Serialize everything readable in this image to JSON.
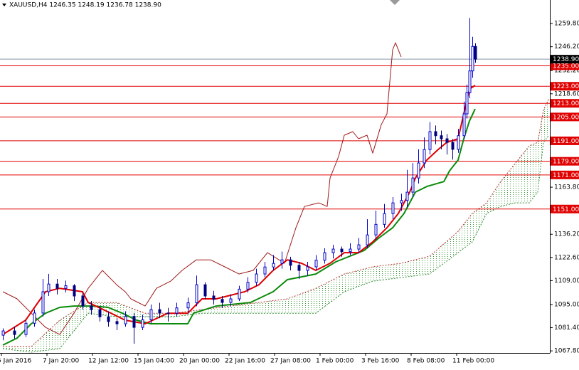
{
  "chart_data": {
    "type": "candlestick",
    "title": "XAUUSD,H4  1246.35 1248.19 1236.78 1238.90",
    "xlim": [
      -1,
      192.25
    ],
    "xticks": [
      {
        "value": -0.5,
        "label": "5 Jan 2016"
      },
      {
        "value": 15.5,
        "label": "7 Jan 20:00"
      },
      {
        "value": 31.5,
        "label": "12 Jan 12:00"
      },
      {
        "value": 47.5,
        "label": "15 Jan 04:00"
      },
      {
        "value": 63.5,
        "label": "20 Jan 00:00"
      },
      {
        "value": 79.5,
        "label": "22 Jan 16:00"
      },
      {
        "value": 95.5,
        "label": "27 Jan 08:00"
      },
      {
        "value": 111.5,
        "label": "1 Feb 00:00"
      },
      {
        "value": 127.5,
        "label": "3 Feb 16:00"
      },
      {
        "value": 143.5,
        "label": "8 Feb 08:00"
      },
      {
        "value": 159.5,
        "label": "11 Feb 00:00"
      }
    ],
    "ylim": [
      1066.6,
      1273.6
    ],
    "yticks": [
      {
        "value": 1259.8,
        "label": "1259.80"
      },
      {
        "value": 1246.2,
        "label": "1246.20"
      },
      {
        "value": 1232.2,
        "label": "1232.20"
      },
      {
        "value": 1218.6,
        "label": "1218.60"
      },
      {
        "value": 1163.8,
        "label": "1163.80"
      },
      {
        "value": 1136.2,
        "label": "1136.20"
      },
      {
        "value": 1122.6,
        "label": "1122.60"
      },
      {
        "value": 1109,
        "label": "1109.00"
      },
      {
        "value": 1095,
        "label": "1095.00"
      },
      {
        "value": 1081.4,
        "label": "1081.40"
      },
      {
        "value": 1067.8,
        "label": "1067.80"
      }
    ],
    "candles": {
      "bull_color": "#0000c8",
      "bear_color": "#000080",
      "x": [
        0,
        4,
        8,
        11,
        14,
        16,
        19,
        22,
        25,
        28,
        31,
        34,
        37,
        40,
        43,
        46,
        49,
        52,
        55,
        58,
        61,
        65,
        68,
        71,
        74,
        77,
        80,
        83,
        86,
        89,
        92,
        95,
        98,
        101,
        104,
        107,
        110,
        113,
        116,
        119,
        122,
        125,
        128,
        131,
        134,
        137,
        140,
        142,
        144,
        146,
        148,
        150,
        152,
        154,
        156,
        158,
        160,
        162,
        163,
        164,
        165,
        166
      ],
      "open": [
        1077,
        1079.5,
        1077.4,
        1084,
        1090,
        1102.5,
        1107,
        1104.5,
        1106,
        1100,
        1094.1,
        1092,
        1087.8,
        1085,
        1083.7,
        1088,
        1081.6,
        1086,
        1092,
        1090,
        1089.9,
        1093,
        1096,
        1106.6,
        1100,
        1098,
        1096.2,
        1098.3,
        1104,
        1108,
        1112.9,
        1117,
        1119.1,
        1121.2,
        1118,
        1115,
        1117.1,
        1121,
        1125.4,
        1127.5,
        1126,
        1127.5,
        1130,
        1135.8,
        1142,
        1148.3,
        1154.6,
        1156,
        1160.9,
        1169.2,
        1178,
        1185.9,
        1196.4,
        1194,
        1192.2,
        1190.1,
        1186,
        1194,
        1206.8,
        1219.3,
        1232,
        1246.35
      ],
      "high": [
        1081,
        1082,
        1086,
        1092,
        1110,
        1113,
        1110,
        1109,
        1107,
        1102,
        1097,
        1094,
        1091,
        1087,
        1091,
        1090,
        1089,
        1095,
        1096,
        1093,
        1096,
        1099,
        1112,
        1108,
        1103,
        1100,
        1101,
        1106,
        1111,
        1116,
        1120,
        1124,
        1126,
        1123,
        1120,
        1120,
        1124,
        1128,
        1130,
        1129,
        1131,
        1134,
        1145,
        1150,
        1154,
        1158,
        1160,
        1174,
        1178,
        1186,
        1193,
        1202,
        1200,
        1197,
        1195,
        1192,
        1198,
        1214,
        1224,
        1263,
        1252,
        1248.19
      ],
      "low": [
        1074,
        1075,
        1076,
        1082,
        1088,
        1100,
        1101,
        1102,
        1097,
        1092,
        1089,
        1085,
        1082,
        1080,
        1082,
        1072,
        1080,
        1084,
        1087,
        1085,
        1088,
        1090,
        1094,
        1098,
        1095,
        1093,
        1094,
        1097,
        1102,
        1106,
        1111,
        1115,
        1116,
        1115,
        1110,
        1112,
        1115,
        1119,
        1122,
        1123,
        1124,
        1125,
        1128,
        1133,
        1140,
        1145,
        1150,
        1152,
        1158,
        1166,
        1175,
        1183,
        1189,
        1186,
        1183,
        1180,
        1184,
        1192,
        1204,
        1216,
        1228,
        1236.78
      ],
      "close": [
        1079.5,
        1077.4,
        1084,
        1090,
        1102.5,
        1107,
        1104.5,
        1106,
        1100,
        1094.1,
        1092,
        1087.8,
        1085,
        1083.7,
        1088,
        1081.6,
        1086,
        1092,
        1090,
        1089.9,
        1093,
        1096,
        1106.6,
        1100,
        1098,
        1096.2,
        1098.3,
        1104,
        1108,
        1112.9,
        1117,
        1119.1,
        1121.2,
        1118,
        1115,
        1117.1,
        1121,
        1125.4,
        1127.5,
        1126,
        1127.5,
        1130,
        1135.8,
        1142,
        1148.3,
        1154.6,
        1156,
        1160.9,
        1169.2,
        1178,
        1185.9,
        1196.4,
        1194,
        1192.2,
        1190.1,
        1186,
        1194,
        1206.8,
        1219.3,
        1232,
        1246.35,
        1238.9
      ]
    },
    "cloud": {
      "x": [
        0,
        10,
        20,
        30,
        40,
        50,
        60,
        70,
        80,
        90,
        100,
        110,
        120,
        130,
        140,
        150,
        160,
        165,
        170,
        175,
        180,
        185,
        188,
        190,
        192
      ],
      "span_a": [
        1070.3,
        1070.3,
        1085.8,
        1096.2,
        1096.2,
        1089.9,
        1089.9,
        1092.0,
        1094.1,
        1096.2,
        1098.3,
        1104.5,
        1112.9,
        1117.1,
        1119.2,
        1123.3,
        1137.9,
        1148.4,
        1154.6,
        1167.1,
        1177.6,
        1188.0,
        1190.1,
        1208.9,
        1216.0
      ],
      "span_b": [
        1069.1,
        1067.0,
        1069.1,
        1089.9,
        1087.8,
        1087.8,
        1087.8,
        1089.9,
        1089.9,
        1089.9,
        1089.9,
        1089.9,
        1102.5,
        1108.7,
        1110.8,
        1112.9,
        1125.4,
        1131.7,
        1148.4,
        1152.5,
        1154.6,
        1154.6,
        1160.9,
        1190.1,
        1194.3
      ],
      "color_a": "#b0302a",
      "color_b": "#2e8b2e",
      "fill": "#3a9a3a"
    },
    "lines": [
      {
        "color": "#a01818",
        "width": 1,
        "x": [
          0,
          5,
          10,
          15,
          20,
          25,
          30,
          35,
          40,
          43,
          45,
          50,
          54,
          59,
          63,
          68,
          73,
          78,
          83,
          88,
          93,
          99,
          103,
          106,
          111,
          114,
          115,
          118,
          120,
          123,
          125,
          128,
          130,
          133,
          135,
          137,
          138,
          140
        ],
        "values": [
          1102.5,
          1098.3,
          1089.9,
          1081.6,
          1077.4,
          1089.9,
          1104.5,
          1115.0,
          1106.6,
          1102.5,
          1098.3,
          1094.1,
          1104.5,
          1108.7,
          1115.0,
          1121.2,
          1121.2,
          1117.1,
          1112.9,
          1115.0,
          1125.4,
          1119.2,
          1140.0,
          1152.5,
          1154.6,
          1152.5,
          1169.2,
          1181.8,
          1194.3,
          1196.4,
          1192.2,
          1194.3,
          1183.8,
          1200.5,
          1206.8,
          1244.4,
          1248.5,
          1240.2
        ]
      },
      {
        "color": "#0a8a0a",
        "width": 2,
        "x": [
          0,
          5,
          10,
          15,
          20,
          25,
          32,
          37,
          42,
          47,
          52,
          65,
          67,
          75,
          87,
          95,
          100,
          110,
          117,
          127,
          132,
          137,
          141,
          145,
          149,
          155,
          157,
          160,
          162,
          164,
          166
        ],
        "values": [
          1071.2,
          1075.3,
          1083.7,
          1089.9,
          1093.3,
          1094.1,
          1094.1,
          1093.3,
          1089.9,
          1085.8,
          1083.7,
          1083.7,
          1089.9,
          1094.1,
          1096.2,
          1102.5,
          1109.6,
          1112.9,
          1120.0,
          1126.7,
          1133.8,
          1140.0,
          1148.4,
          1160.9,
          1164.2,
          1167.1,
          1173.4,
          1179.7,
          1192.2,
          1202.6,
          1209.7
        ]
      },
      {
        "color": "#e00000",
        "width": 2,
        "x": [
          0,
          8,
          15,
          20,
          28,
          30,
          38,
          43,
          50,
          58,
          65,
          70,
          75,
          80,
          85,
          90,
          95,
          100,
          105,
          110,
          115,
          120,
          125,
          130,
          135,
          139,
          143,
          145,
          149,
          153,
          156,
          160,
          162,
          164,
          166
        ],
        "values": [
          1077.4,
          1085.8,
          1102.5,
          1104.5,
          1102.5,
          1096.2,
          1089.9,
          1085.8,
          1083.7,
          1089.9,
          1089.9,
          1098.3,
          1098.3,
          1100.4,
          1102.5,
          1106.6,
          1115.0,
          1121.2,
          1119.2,
          1115.0,
          1119.2,
          1125.4,
          1125.4,
          1131.7,
          1140.0,
          1148.4,
          1160.9,
          1169.2,
          1179.7,
          1185.9,
          1190.1,
          1192.2,
          1206.8,
          1221.4,
          1223.5
        ]
      }
    ],
    "levels": {
      "color": "#e00000",
      "items": [
        {
          "value": 1235,
          "label": "1235.00"
        },
        {
          "value": 1223,
          "label": "1223.00"
        },
        {
          "value": 1213,
          "label": "1213.00"
        },
        {
          "value": 1205,
          "label": "1205.00"
        },
        {
          "value": 1191,
          "label": "1191.00"
        },
        {
          "value": 1179,
          "label": "1179.00"
        },
        {
          "value": 1171,
          "label": "1171.00"
        },
        {
          "value": 1151,
          "label": "1151.00"
        }
      ]
    },
    "price_line": {
      "value": 1238.9,
      "label": "1238.90",
      "color": "#8899aa"
    }
  }
}
